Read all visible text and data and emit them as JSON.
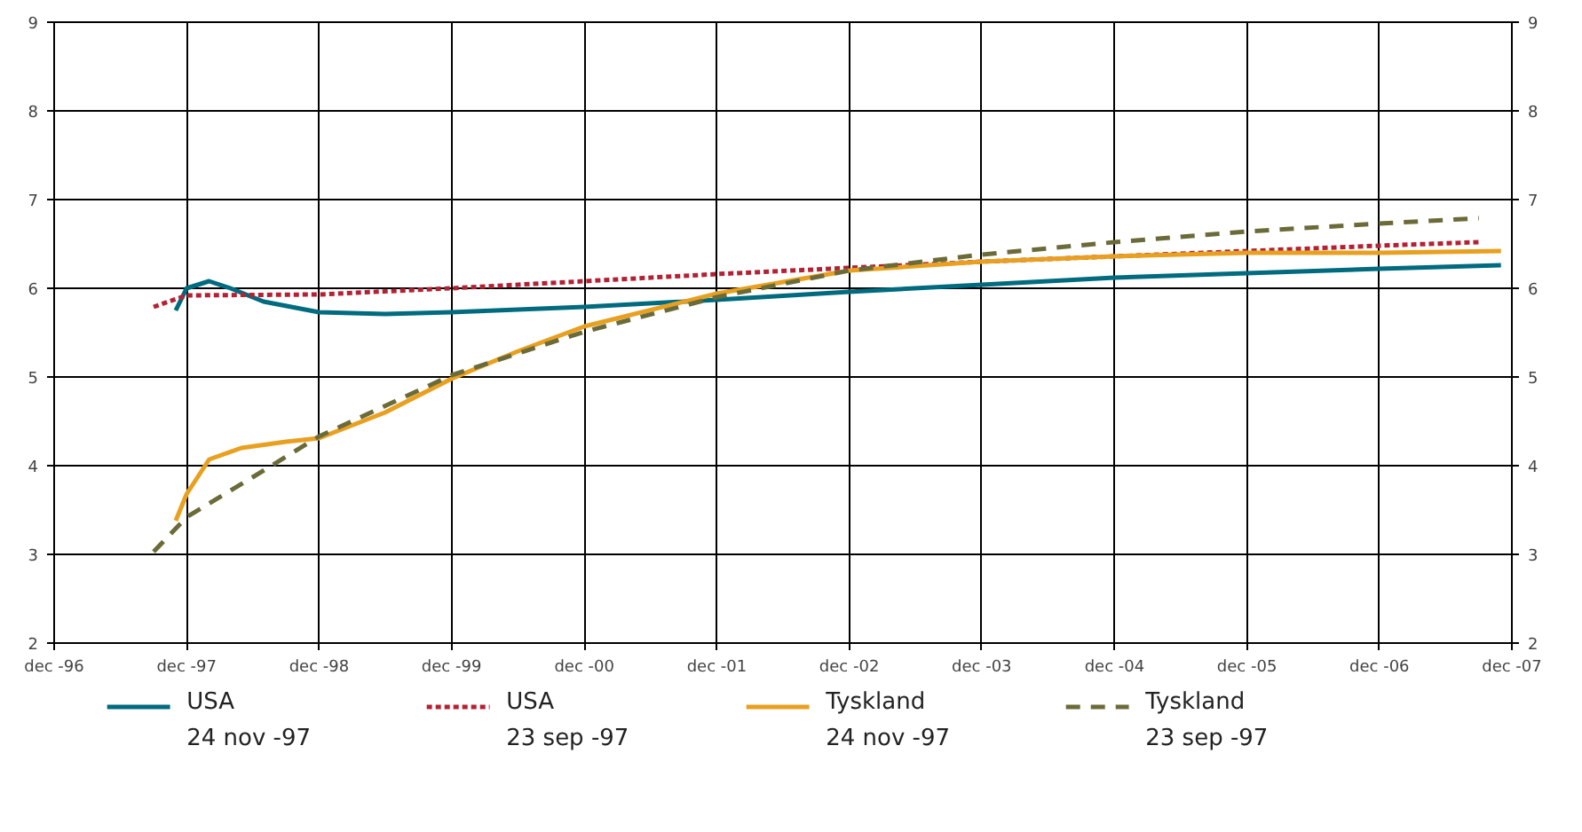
{
  "chart_data": {
    "type": "line",
    "xlim": [
      "1996-12",
      "2007-12"
    ],
    "xticks": [
      {
        "value": "1996-12",
        "label": "dec -96"
      },
      {
        "value": "1997-12",
        "label": "dec -97"
      },
      {
        "value": "1998-12",
        "label": "dec -98"
      },
      {
        "value": "1999-12",
        "label": "dec -99"
      },
      {
        "value": "2000-12",
        "label": "dec -00"
      },
      {
        "value": "2001-12",
        "label": "dec -01"
      },
      {
        "value": "2002-12",
        "label": "dec -02"
      },
      {
        "value": "2003-12",
        "label": "dec -03"
      },
      {
        "value": "2004-12",
        "label": "dec -04"
      },
      {
        "value": "2005-12",
        "label": "dec -05"
      },
      {
        "value": "2006-12",
        "label": "dec -06"
      },
      {
        "value": "2007-12",
        "label": "dec -07"
      }
    ],
    "ylim": [
      2,
      9
    ],
    "yticks": [
      2,
      3,
      4,
      5,
      6,
      7,
      8,
      9
    ],
    "y2lim": [
      2,
      9
    ],
    "y2ticks": [
      2,
      3,
      4,
      5,
      6,
      7,
      8,
      9
    ],
    "grid": true,
    "legend": "bottom",
    "series": [
      {
        "name": "USA\n24 nov -97",
        "color": "#006b7f",
        "line_style": "solid",
        "x": [
          "1997-11",
          "1997-12",
          "1998-02",
          "1998-04",
          "1998-07",
          "1998-12",
          "1999-06",
          "1999-12",
          "2000-12",
          "2001-12",
          "2002-12",
          "2003-12",
          "2004-12",
          "2005-12",
          "2006-12",
          "2007-11"
        ],
        "values": [
          5.75,
          6.0,
          6.08,
          6.0,
          5.85,
          5.73,
          5.71,
          5.73,
          5.79,
          5.87,
          5.96,
          6.04,
          6.12,
          6.17,
          6.22,
          6.26
        ]
      },
      {
        "name": "USA\n23 sep -97",
        "color": "#b22234",
        "line_style": "dotted",
        "x": [
          "1997-09",
          "1997-12",
          "1998-12",
          "1999-12",
          "2000-12",
          "2001-12",
          "2002-12",
          "2003-12",
          "2004-12",
          "2005-12",
          "2006-12",
          "2007-09"
        ],
        "values": [
          5.79,
          5.92,
          5.93,
          6.0,
          6.08,
          6.16,
          6.23,
          6.3,
          6.36,
          6.42,
          6.48,
          6.52
        ]
      },
      {
        "name": "Tyskland\n24 nov -97",
        "color": "#e8a020",
        "line_style": "solid",
        "x": [
          "1997-11",
          "1997-12",
          "1998-02",
          "1998-05",
          "1998-09",
          "1998-12",
          "1999-06",
          "1999-12",
          "2000-06",
          "2000-12",
          "2001-12",
          "2002-12",
          "2003-12",
          "2004-12",
          "2005-12",
          "2006-12",
          "2007-11"
        ],
        "values": [
          3.38,
          3.68,
          4.07,
          4.2,
          4.27,
          4.31,
          4.6,
          4.98,
          5.29,
          5.57,
          5.94,
          6.2,
          6.3,
          6.36,
          6.4,
          6.4,
          6.42
        ]
      },
      {
        "name": "Tyskland\n23 sep -97",
        "color": "#6b6b3a",
        "line_style": "dashed",
        "x": [
          "1997-09",
          "1997-12",
          "1998-06",
          "1998-12",
          "1999-12",
          "2000-12",
          "2001-12",
          "2002-12",
          "2003-12",
          "2004-12",
          "2005-12",
          "2006-12",
          "2007-09"
        ],
        "values": [
          3.03,
          3.42,
          3.87,
          4.33,
          5.02,
          5.51,
          5.9,
          6.2,
          6.38,
          6.52,
          6.64,
          6.73,
          6.79
        ]
      }
    ]
  }
}
